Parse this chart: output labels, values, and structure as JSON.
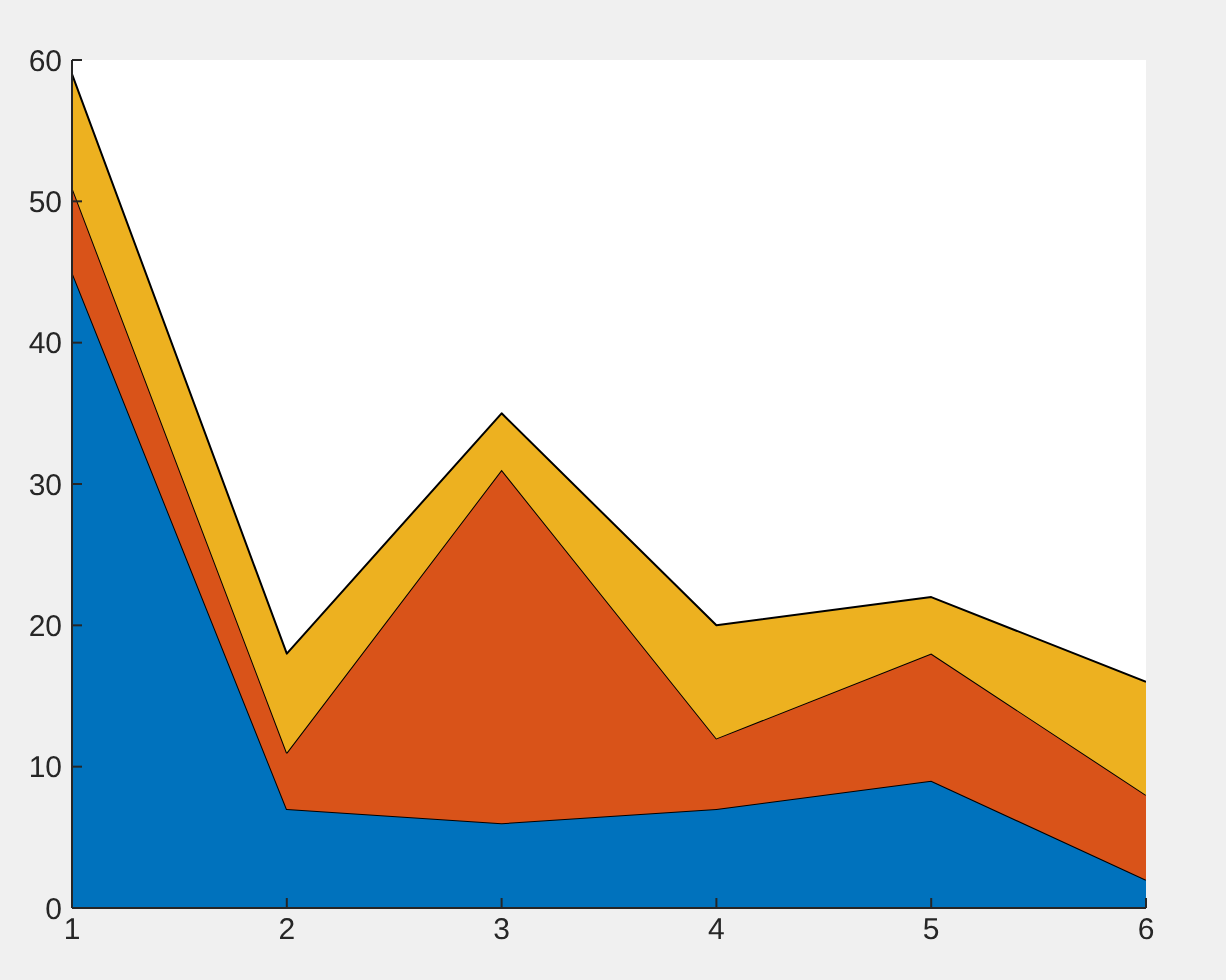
{
  "chart_data": {
    "type": "area",
    "stacked": true,
    "x": [
      1,
      2,
      3,
      4,
      5,
      6
    ],
    "xlim": [
      1,
      6
    ],
    "xticks": [
      1,
      2,
      3,
      4,
      5,
      6
    ],
    "ylim": [
      0,
      60
    ],
    "yticks": [
      0,
      10,
      20,
      30,
      40,
      50,
      60
    ],
    "series": [
      {
        "color": "#0072bd",
        "values": [
          45,
          7,
          6,
          7,
          9,
          2
        ]
      },
      {
        "color": "#d95319",
        "values": [
          6,
          4,
          25,
          5,
          9,
          6
        ]
      },
      {
        "color": "#edb120",
        "values": [
          8,
          7,
          4,
          8,
          4,
          8
        ]
      }
    ]
  }
}
